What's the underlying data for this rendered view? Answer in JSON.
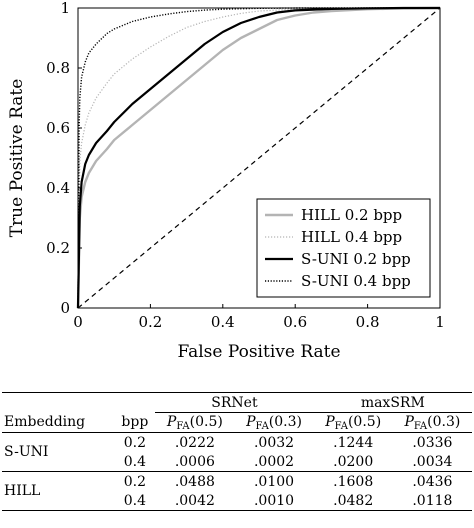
{
  "chart_data": {
    "type": "line",
    "xlabel": "False Positive Rate",
    "ylabel": "True Positive Rate",
    "xlim": [
      0,
      1
    ],
    "ylim": [
      0,
      1
    ],
    "x_ticks": [
      "0",
      "0.2",
      "0.4",
      "0.6",
      "0.8",
      "1"
    ],
    "y_ticks": [
      "0",
      "0.2",
      "0.4",
      "0.6",
      "0.8",
      "1"
    ],
    "grid": false,
    "legend_position": "bottom-right",
    "series": [
      {
        "name": "HILL 0.2 bpp",
        "style": "solid-gray",
        "color": "#b4b4b4",
        "x": [
          0,
          0.005,
          0.01,
          0.02,
          0.03,
          0.05,
          0.08,
          0.1,
          0.15,
          0.2,
          0.25,
          0.3,
          0.35,
          0.4,
          0.45,
          0.5,
          0.55,
          0.6,
          0.65,
          0.7,
          0.8,
          0.9,
          1.0
        ],
        "y": [
          0,
          0.3,
          0.37,
          0.42,
          0.45,
          0.49,
          0.53,
          0.56,
          0.61,
          0.66,
          0.71,
          0.76,
          0.81,
          0.86,
          0.9,
          0.93,
          0.96,
          0.975,
          0.985,
          0.99,
          0.996,
          0.999,
          1.0
        ]
      },
      {
        "name": "HILL 0.4 bpp",
        "style": "dotted-gray",
        "color": "#b4b4b4",
        "x": [
          0,
          0.005,
          0.01,
          0.02,
          0.03,
          0.05,
          0.08,
          0.1,
          0.15,
          0.2,
          0.25,
          0.3,
          0.35,
          0.4,
          0.45,
          0.5,
          0.6,
          0.7,
          0.8,
          1.0
        ],
        "y": [
          0,
          0.49,
          0.55,
          0.61,
          0.65,
          0.7,
          0.75,
          0.78,
          0.83,
          0.87,
          0.905,
          0.935,
          0.955,
          0.97,
          0.982,
          0.99,
          0.996,
          0.999,
          1.0,
          1.0
        ]
      },
      {
        "name": "S-UNI 0.2 bpp",
        "style": "solid-black",
        "color": "#000000",
        "x": [
          0,
          0.005,
          0.01,
          0.02,
          0.03,
          0.05,
          0.08,
          0.1,
          0.15,
          0.2,
          0.25,
          0.3,
          0.35,
          0.4,
          0.45,
          0.5,
          0.55,
          0.6,
          0.7,
          0.8,
          0.9,
          1.0
        ],
        "y": [
          0,
          0.34,
          0.42,
          0.48,
          0.51,
          0.55,
          0.59,
          0.62,
          0.68,
          0.73,
          0.78,
          0.83,
          0.88,
          0.92,
          0.95,
          0.97,
          0.985,
          0.992,
          0.997,
          0.999,
          1.0,
          1.0
        ]
      },
      {
        "name": "S-UNI 0.4 bpp",
        "style": "dotted-black",
        "color": "#000000",
        "x": [
          0,
          0.003,
          0.005,
          0.01,
          0.02,
          0.03,
          0.05,
          0.08,
          0.1,
          0.15,
          0.2,
          0.25,
          0.3,
          0.35,
          0.4,
          0.5,
          0.6,
          0.8,
          1.0
        ],
        "y": [
          0,
          0.6,
          0.7,
          0.77,
          0.82,
          0.85,
          0.88,
          0.915,
          0.93,
          0.955,
          0.97,
          0.98,
          0.988,
          0.993,
          0.996,
          0.999,
          1.0,
          1.0,
          1.0
        ]
      },
      {
        "name": "",
        "style": "dashed-black",
        "color": "#000000",
        "x": [
          0,
          1
        ],
        "y": [
          0,
          1
        ]
      }
    ]
  },
  "table": {
    "group_headers": [
      "SRNet",
      "maxSRM"
    ],
    "col_embedding": "Embedding",
    "col_bpp": "bpp",
    "pfa_main": "P",
    "pfa_sub": "FA",
    "pfa_args": [
      "(0.5)",
      "(0.3)",
      "(0.5)",
      "(0.3)"
    ],
    "groups": [
      {
        "name": "S-UNI",
        "rows": [
          {
            "bpp": "0.2",
            "values": [
              ".0222",
              ".0032",
              ".1244",
              ".0336"
            ]
          },
          {
            "bpp": "0.4",
            "values": [
              ".0006",
              ".0002",
              ".0200",
              ".0034"
            ]
          }
        ]
      },
      {
        "name": "HILL",
        "rows": [
          {
            "bpp": "0.2",
            "values": [
              ".0488",
              ".0100",
              ".1608",
              ".0436"
            ]
          },
          {
            "bpp": "0.4",
            "values": [
              ".0042",
              ".0010",
              ".0482",
              ".0118"
            ]
          }
        ]
      }
    ]
  }
}
